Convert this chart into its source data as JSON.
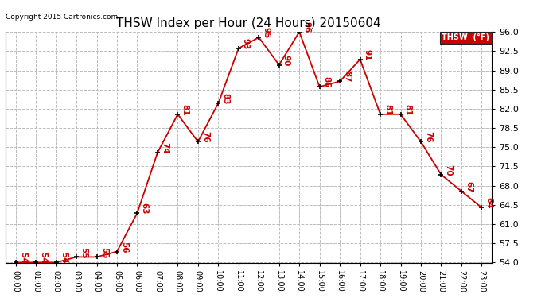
{
  "title": "THSW Index per Hour (24 Hours) 20150604",
  "copyright": "Copyright 2015 Cartronics.com",
  "legend_label": "THSW  (°F)",
  "hours": [
    0,
    1,
    2,
    3,
    4,
    5,
    6,
    7,
    8,
    9,
    10,
    11,
    12,
    13,
    14,
    15,
    16,
    17,
    18,
    19,
    20,
    21,
    22,
    23
  ],
  "values": [
    54,
    54,
    54,
    55,
    55,
    56,
    63,
    74,
    81,
    76,
    83,
    93,
    95,
    90,
    96,
    86,
    87,
    91,
    81,
    81,
    76,
    70,
    67,
    64
  ],
  "ylim_min": 54.0,
  "ylim_max": 96.0,
  "yticks": [
    54.0,
    57.5,
    61.0,
    64.5,
    68.0,
    71.5,
    75.0,
    78.5,
    82.0,
    85.5,
    89.0,
    92.5,
    96.0
  ],
  "line_color": "#cc0000",
  "marker_color": "#000000",
  "bg_color": "#ffffff",
  "grid_color": "#bbbbbb",
  "title_color": "#000000",
  "copyright_color": "#000000",
  "legend_bg": "#cc0000",
  "legend_text_color": "#ffffff",
  "label_fontsize": 7.5,
  "tick_fontsize": 7,
  "title_fontsize": 11
}
